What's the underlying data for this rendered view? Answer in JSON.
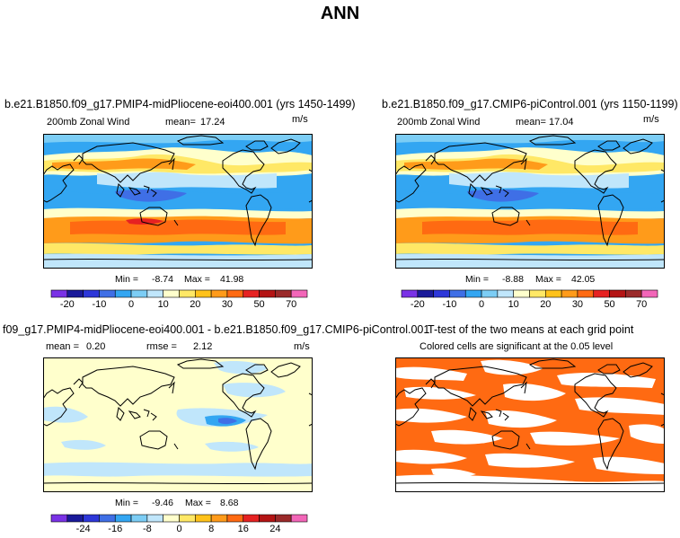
{
  "page_title": "ANN",
  "colors": {
    "diverging_scale": [
      "#7a32e6",
      "#1a1a9a",
      "#2d37d9",
      "#3f6fe6",
      "#33a6f2",
      "#7ccdf5",
      "#c0e6fb",
      "#ffffcc",
      "#ffe866",
      "#ffc21a",
      "#ff9b1a",
      "#ff6a12",
      "#e62222",
      "#b41414",
      "#9b2a2a",
      "#f266b8"
    ],
    "ttest_significant": "#ff6a12",
    "land_outline": "#000000"
  },
  "chart_data": [
    {
      "type": "heatmap",
      "panel": "top-left",
      "title": "b.e21.B1850.f09_g17.PMIP4-midPliocene-eoi400.001 (yrs 1450-1499)",
      "variable": "200mb Zonal Wind",
      "mean_label": "mean=",
      "mean": "17.24",
      "units": "m/s",
      "min_label": "Min =",
      "min": "-8.74",
      "max_label": "Max =",
      "max": "41.98",
      "colorbar_ticks": [
        "-20",
        "-10",
        "0",
        "10",
        "20",
        "30",
        "50",
        "70"
      ],
      "colorbar_boundaries": [
        -20,
        -15,
        -10,
        -5,
        0,
        5,
        10,
        15,
        20,
        25,
        30,
        40,
        50,
        60,
        70
      ]
    },
    {
      "type": "heatmap",
      "panel": "top-right",
      "title": "b.e21.B1850.f09_g17.CMIP6-piControl.001 (yrs 1150-1199)",
      "variable": "200mb Zonal Wind",
      "mean_label": "mean=",
      "mean": "17.04",
      "units": "m/s",
      "min_label": "Min =",
      "min": "-8.88",
      "max_label": "Max =",
      "max": "42.05",
      "colorbar_ticks": [
        "-20",
        "-10",
        "0",
        "10",
        "20",
        "30",
        "50",
        "70"
      ],
      "colorbar_boundaries": [
        -20,
        -15,
        -10,
        -5,
        0,
        5,
        10,
        15,
        20,
        25,
        30,
        40,
        50,
        60,
        70
      ]
    },
    {
      "type": "heatmap",
      "panel": "bottom-left",
      "title": "f09_g17.PMIP4-midPliocene-eoi400.001 - b.e21.B1850.f09_g17.CMIP6-piControl.001",
      "mean_label": "mean =",
      "mean": "0.20",
      "rmse_label": "rmse =",
      "rmse": "2.12",
      "units": "m/s",
      "min_label": "Min =",
      "min": "-9.46",
      "max_label": "Max =",
      "max": "8.68",
      "colorbar_ticks": [
        "-24",
        "-16",
        "-8",
        "0",
        "8",
        "16",
        "24"
      ],
      "colorbar_boundaries": [
        -28,
        -24,
        -20,
        -16,
        -12,
        -8,
        -4,
        0,
        4,
        8,
        12,
        16,
        20,
        24,
        28
      ]
    },
    {
      "type": "heatmap",
      "panel": "bottom-right",
      "title": "T-test of the two means at each grid point",
      "subtitle": "Colored cells are significant at the 0.05 level"
    }
  ]
}
